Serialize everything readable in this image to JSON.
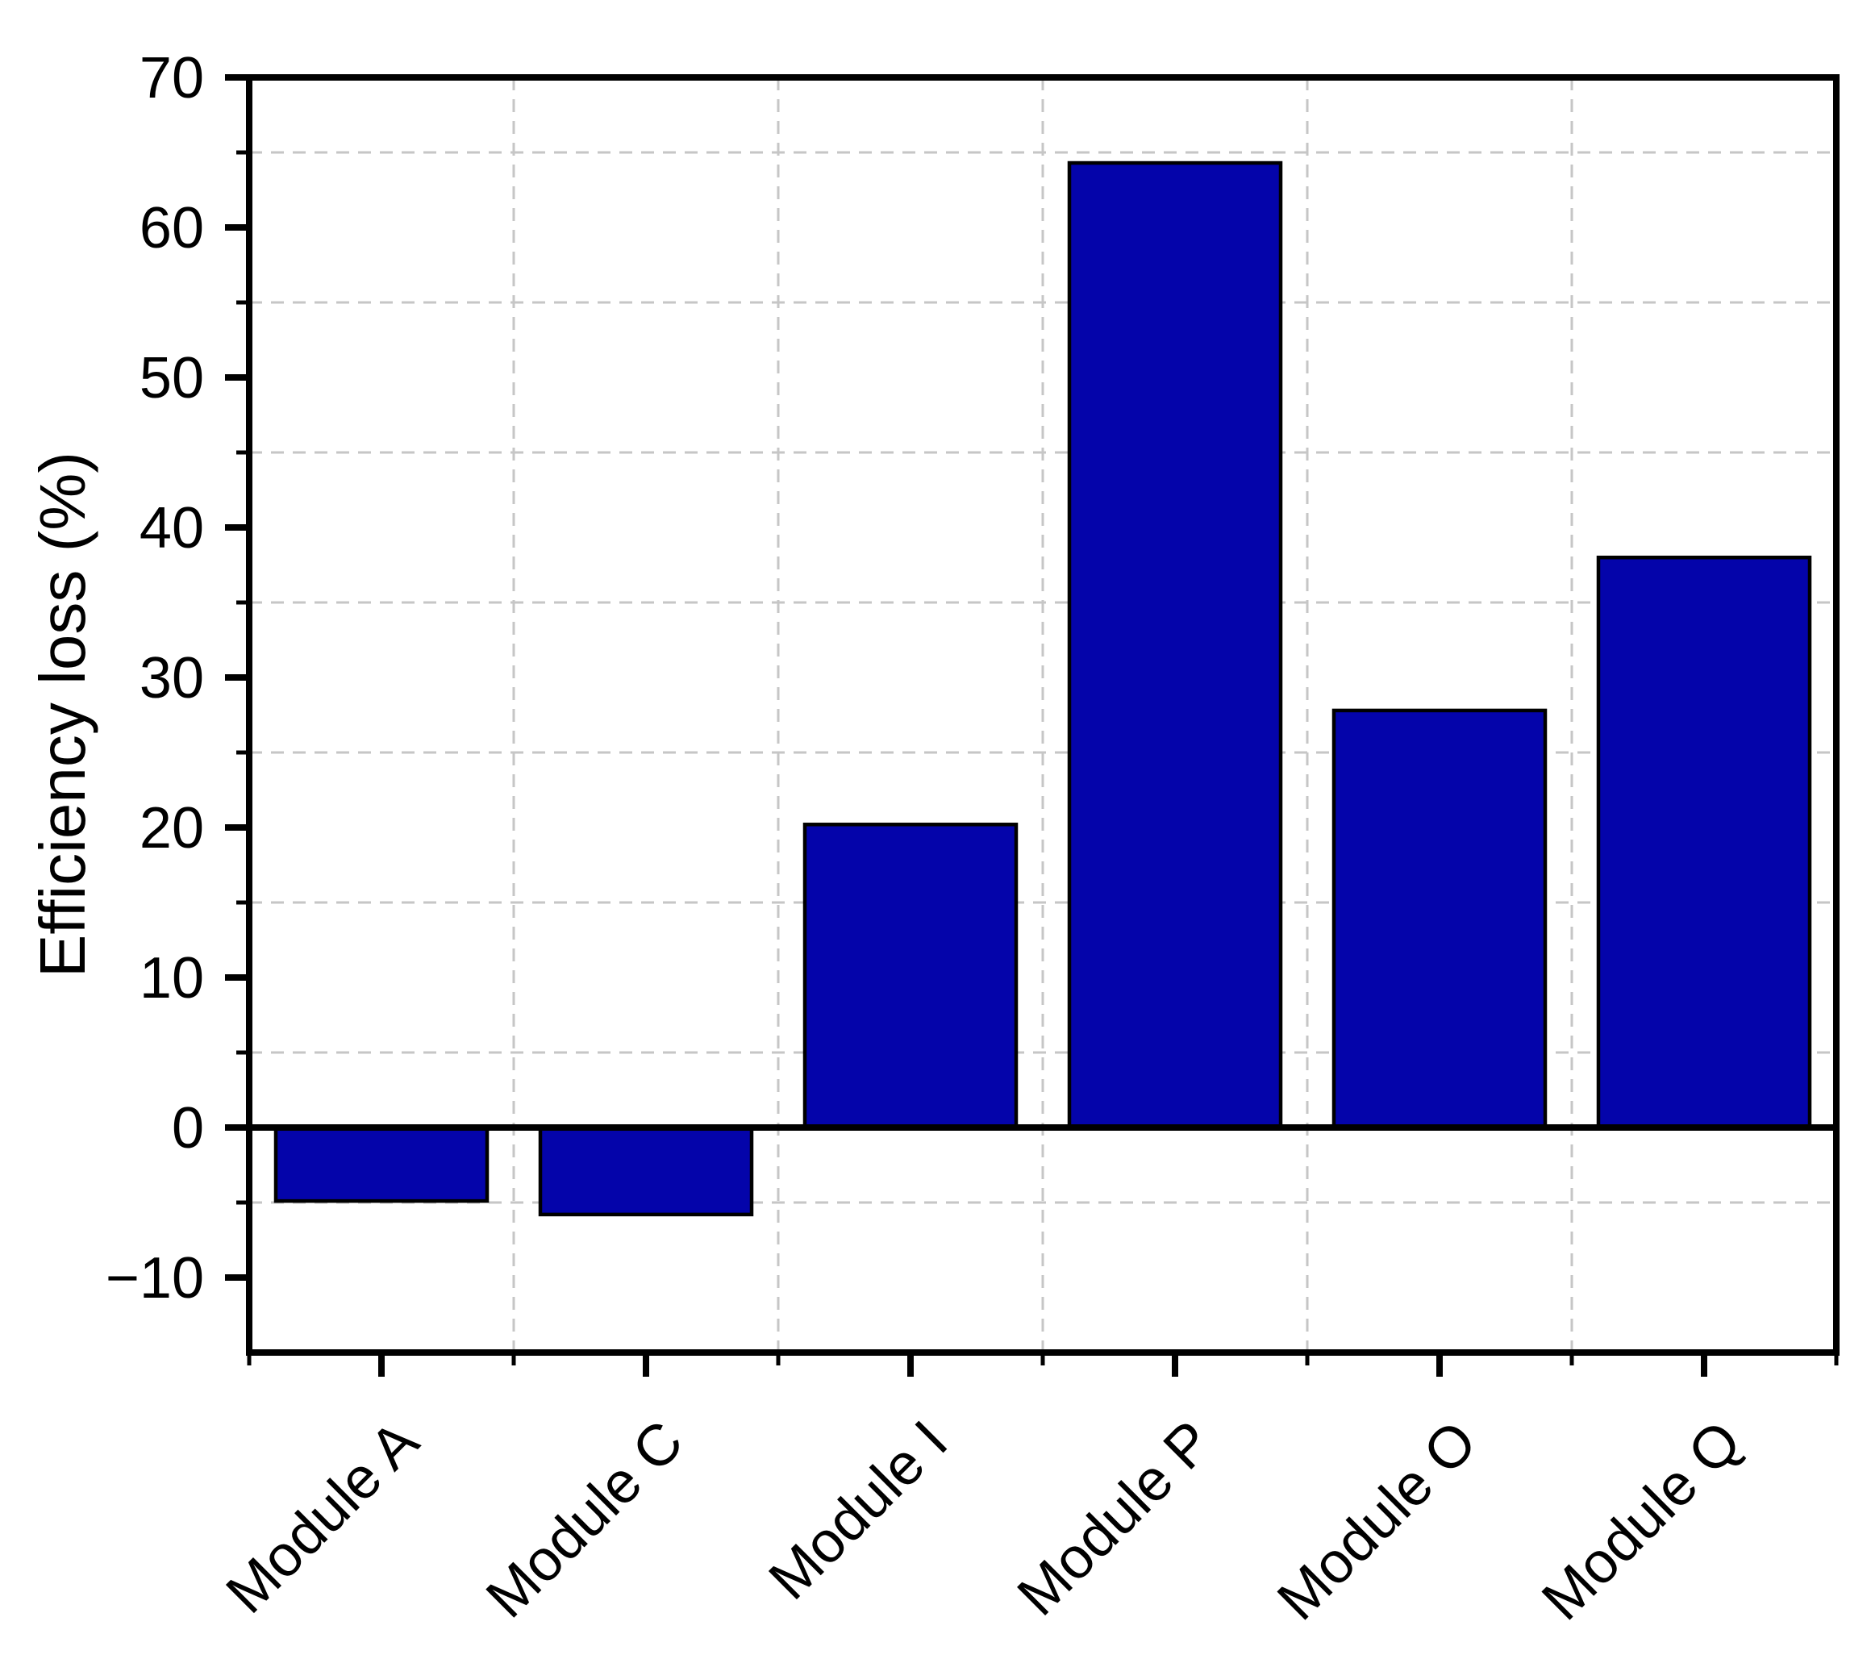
{
  "figure": {
    "background": "#ffffff"
  },
  "chart_data": {
    "type": "bar",
    "title": "",
    "categories": [
      "Module A",
      "Module C",
      "Module I",
      "Module P",
      "Module O",
      "Module Q"
    ],
    "values": [
      -4.9,
      -5.8,
      20.2,
      64.3,
      27.8,
      38.0
    ],
    "xlabel": "",
    "ylabel": "Efficiency loss (%)",
    "ylim": [
      -15,
      70
    ],
    "y_major_ticks": [
      70,
      60,
      50,
      40,
      30,
      20,
      10,
      0,
      -10
    ],
    "y_major_tick_labels": [
      "70",
      "60",
      "50",
      "40",
      "30",
      "20",
      "10",
      "0",
      "−10"
    ],
    "y_minor_ticks": [
      65,
      55,
      45,
      35,
      25,
      15,
      5,
      -5
    ],
    "grid": "dashed-at-minor-ticks-and-category-boundaries",
    "legend": null,
    "colors": {
      "bar_fill": "#0404aa",
      "bar_edge": "#000000",
      "axis": "#000000",
      "gridline": "#c6c6c6"
    }
  }
}
